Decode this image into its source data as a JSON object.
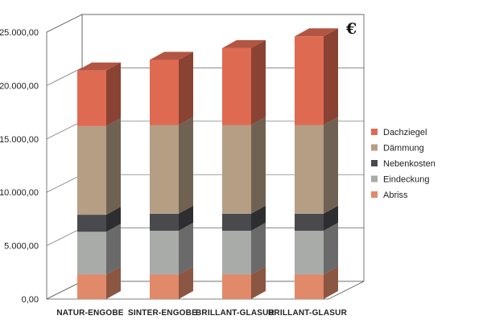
{
  "chart_data": {
    "type": "bar",
    "stacked": true,
    "style": "3d",
    "title": "",
    "xlabel": "",
    "ylabel": "",
    "unit": "€",
    "ylim": [
      0,
      25000
    ],
    "yticks": [
      "0,00",
      "5.000,00",
      "10.000,00",
      "15.000,00",
      "20.000,00",
      "25.000,00"
    ],
    "grid": true,
    "legend_position": "right",
    "categories": [
      "NATUR-ENGOBE",
      "SINTER-ENGOBE",
      "BRILLANT-GLASUR",
      "BRILLANT-GLASUR"
    ],
    "series": [
      {
        "name": "Abriss",
        "color": "#e08a6a",
        "values": [
          2300,
          2300,
          2300,
          2300
        ]
      },
      {
        "name": "Eindeckung",
        "color": "#a9aba9",
        "values": [
          4000,
          4100,
          4100,
          4100
        ]
      },
      {
        "name": "Nebenkosten",
        "color": "#4a4a4e",
        "values": [
          1600,
          1600,
          1600,
          1600
        ]
      },
      {
        "name": "Dämmung",
        "color": "#b59e84",
        "values": [
          8300,
          8300,
          8300,
          8300
        ]
      },
      {
        "name": "Dachziegel",
        "color": "#df6a52",
        "values": [
          5200,
          6100,
          7200,
          8300
        ]
      }
    ],
    "legend_order": [
      "Dachziegel",
      "Dämmung",
      "Nebenkosten",
      "Eindeckung",
      "Abriss"
    ]
  }
}
